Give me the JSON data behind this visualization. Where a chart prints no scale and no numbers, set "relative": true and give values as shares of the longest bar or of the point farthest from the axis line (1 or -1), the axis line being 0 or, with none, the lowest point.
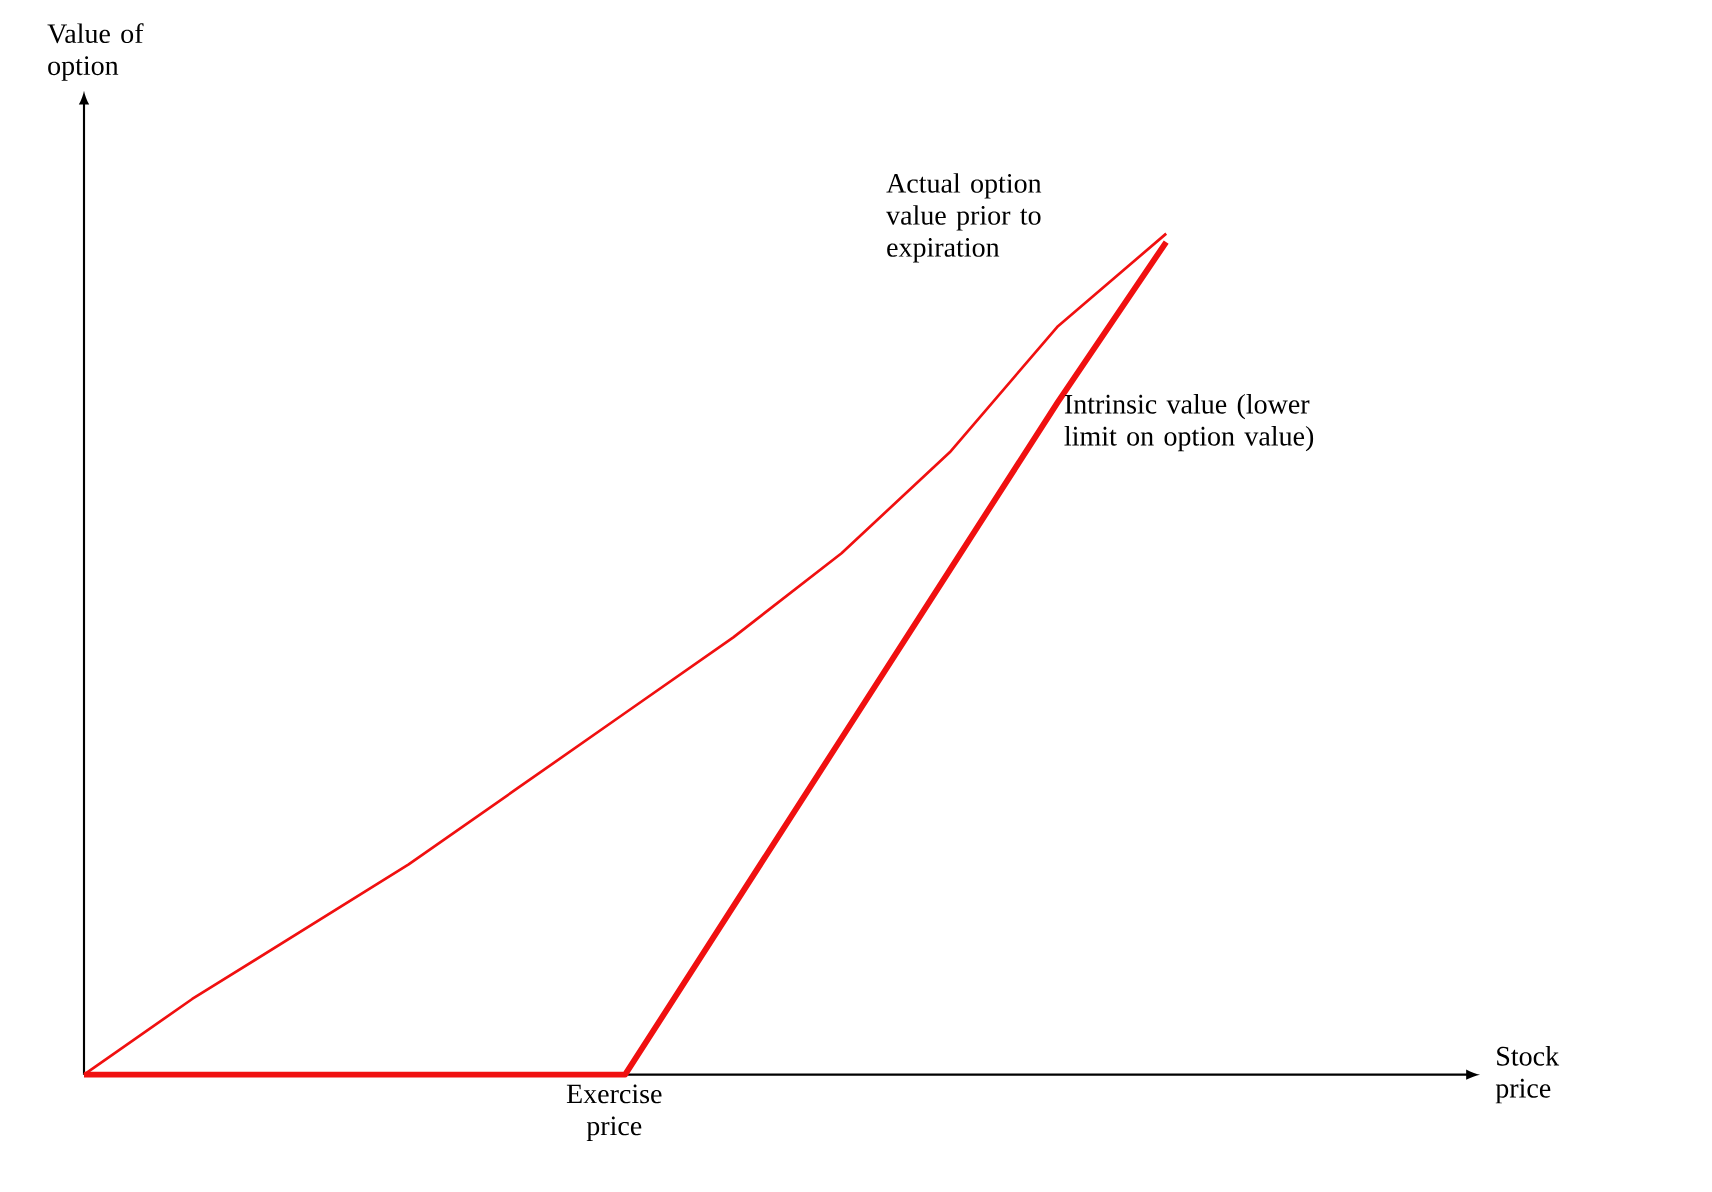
{
  "chart_data": {
    "type": "line",
    "relative": true,
    "categories": [
      null,
      null,
      null,
      null,
      null,
      null,
      null,
      null,
      null,
      null,
      null
    ],
    "series": [
      {
        "name": "Actual option value prior to expiration",
        "color": "#f01010",
        "values": [
          0,
          0.09,
          0.17,
          0.25,
          0.34,
          0.43,
          0.52,
          0.62,
          0.74,
          0.89,
          1.0
        ]
      },
      {
        "name": "Intrinsic value (lower limit on option value)",
        "color": "#f01010",
        "values": [
          0,
          0,
          0,
          0,
          0,
          0,
          0.2,
          0.4,
          0.6,
          0.8,
          0.99
        ]
      }
    ],
    "annotations": [
      "Exercise price",
      "Stock price",
      "Value of option"
    ],
    "marker": "none",
    "line_style": "solid"
  }
}
